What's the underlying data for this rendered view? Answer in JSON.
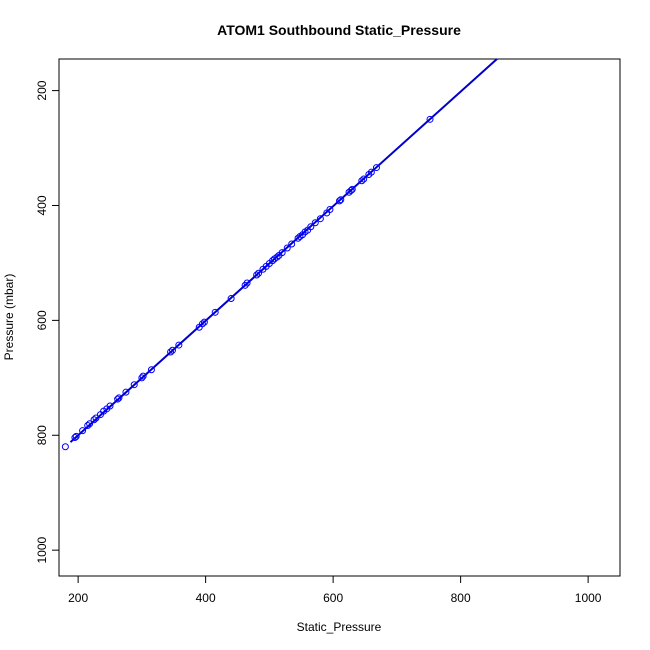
{
  "chart_data": {
    "type": "scatter",
    "title": "ATOM1 Southbound Static_Pressure",
    "xlabel": "Static_Pressure",
    "ylabel": "Pressure (mbar)",
    "xlim": [
      170,
      1050
    ],
    "ylim": [
      1045,
      145
    ],
    "y_reversed": true,
    "xticks": [
      200,
      400,
      600,
      800,
      1000
    ],
    "yticks": [
      200,
      400,
      600,
      800,
      1000
    ],
    "point_color": "#0000ff",
    "line_color": "#0000cc",
    "grid": false,
    "fit_line": {
      "x": [
        188,
        857
      ],
      "y": [
        812,
        145
      ]
    },
    "points": [
      {
        "x": 180,
        "y": 820
      },
      {
        "x": 195,
        "y": 804
      },
      {
        "x": 197,
        "y": 802
      },
      {
        "x": 207,
        "y": 792
      },
      {
        "x": 215,
        "y": 783
      },
      {
        "x": 218,
        "y": 780
      },
      {
        "x": 225,
        "y": 773
      },
      {
        "x": 228,
        "y": 770
      },
      {
        "x": 235,
        "y": 764
      },
      {
        "x": 240,
        "y": 758
      },
      {
        "x": 245,
        "y": 754
      },
      {
        "x": 250,
        "y": 749
      },
      {
        "x": 262,
        "y": 737
      },
      {
        "x": 264,
        "y": 735
      },
      {
        "x": 275,
        "y": 725
      },
      {
        "x": 288,
        "y": 712
      },
      {
        "x": 300,
        "y": 700
      },
      {
        "x": 302,
        "y": 697
      },
      {
        "x": 315,
        "y": 686
      },
      {
        "x": 345,
        "y": 655
      },
      {
        "x": 348,
        "y": 652
      },
      {
        "x": 358,
        "y": 643
      },
      {
        "x": 390,
        "y": 612
      },
      {
        "x": 395,
        "y": 606
      },
      {
        "x": 398,
        "y": 603
      },
      {
        "x": 415,
        "y": 586
      },
      {
        "x": 440,
        "y": 562
      },
      {
        "x": 462,
        "y": 539
      },
      {
        "x": 465,
        "y": 535
      },
      {
        "x": 480,
        "y": 521
      },
      {
        "x": 483,
        "y": 518
      },
      {
        "x": 490,
        "y": 511
      },
      {
        "x": 495,
        "y": 506
      },
      {
        "x": 500,
        "y": 501
      },
      {
        "x": 505,
        "y": 496
      },
      {
        "x": 508,
        "y": 493
      },
      {
        "x": 512,
        "y": 490
      },
      {
        "x": 515,
        "y": 487
      },
      {
        "x": 520,
        "y": 482
      },
      {
        "x": 528,
        "y": 474
      },
      {
        "x": 535,
        "y": 467
      },
      {
        "x": 545,
        "y": 457
      },
      {
        "x": 548,
        "y": 454
      },
      {
        "x": 552,
        "y": 451
      },
      {
        "x": 556,
        "y": 446
      },
      {
        "x": 560,
        "y": 443
      },
      {
        "x": 565,
        "y": 437
      },
      {
        "x": 572,
        "y": 430
      },
      {
        "x": 580,
        "y": 423
      },
      {
        "x": 590,
        "y": 413
      },
      {
        "x": 595,
        "y": 407
      },
      {
        "x": 610,
        "y": 392
      },
      {
        "x": 612,
        "y": 390
      },
      {
        "x": 625,
        "y": 377
      },
      {
        "x": 628,
        "y": 374
      },
      {
        "x": 630,
        "y": 372
      },
      {
        "x": 645,
        "y": 357
      },
      {
        "x": 648,
        "y": 354
      },
      {
        "x": 656,
        "y": 346
      },
      {
        "x": 660,
        "y": 342
      },
      {
        "x": 668,
        "y": 334
      },
      {
        "x": 752,
        "y": 250
      }
    ]
  }
}
